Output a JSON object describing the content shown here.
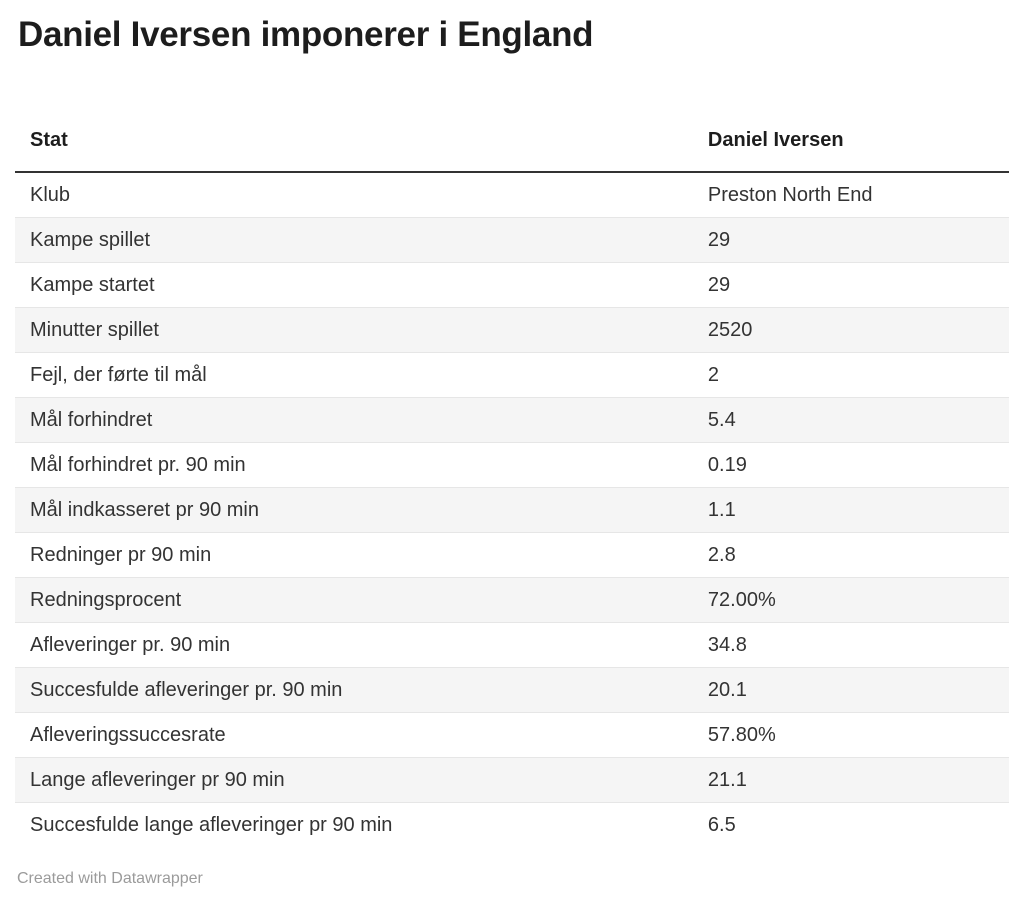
{
  "title": "Daniel Iversen imponerer i England",
  "chart_data": {
    "type": "table",
    "title": "Daniel Iversen imponerer i England",
    "columns": [
      "Stat",
      "Daniel Iversen"
    ],
    "rows": [
      [
        "Klub",
        "Preston North End"
      ],
      [
        "Kampe spillet",
        "29"
      ],
      [
        "Kampe startet",
        "29"
      ],
      [
        "Minutter spillet",
        "2520"
      ],
      [
        "Fejl, der førte til mål",
        "2"
      ],
      [
        "Mål forhindret",
        "5.4"
      ],
      [
        "Mål forhindret pr. 90 min",
        "0.19"
      ],
      [
        "Mål indkasseret pr 90 min",
        "1.1"
      ],
      [
        "Redninger pr 90 min",
        "2.8"
      ],
      [
        "Redningsprocent",
        "72.00%"
      ],
      [
        "Afleveringer pr. 90 min",
        "34.8"
      ],
      [
        "Succesfulde afleveringer pr. 90 min",
        "20.1"
      ],
      [
        "Afleveringssuccesrate",
        "57.80%"
      ],
      [
        "Lange afleveringer pr 90 min",
        "21.1"
      ],
      [
        "Succesfulde lange afleveringer pr 90 min",
        "6.5"
      ]
    ],
    "layout_hints": {
      "zebra_striping": true,
      "header_border": true,
      "value_alignment": "left"
    }
  },
  "footer": {
    "credit": "Created with Datawrapper"
  },
  "colors": {
    "title_text": "#1d1d1d",
    "body_text": "#333333",
    "stripe": "#f5f5f5",
    "divider": "#e6e6e6",
    "header_border": "#333333",
    "footer_text": "#9b9b9b",
    "background": "#ffffff"
  }
}
